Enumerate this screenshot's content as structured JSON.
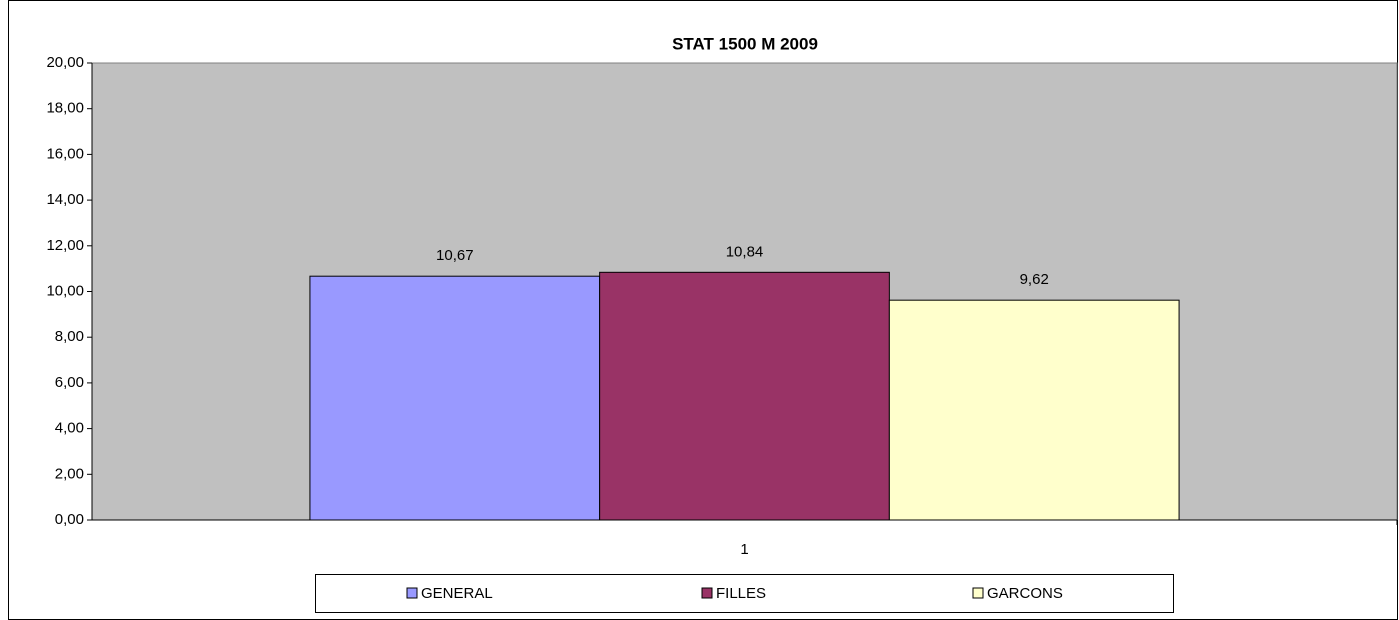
{
  "chart_data": {
    "type": "bar",
    "title": "STAT 1500 M 2009",
    "categories": [
      "1"
    ],
    "series": [
      {
        "name": "GENERAL",
        "color": "#9999ff",
        "values": [
          10.67
        ],
        "value_labels": [
          "10,67"
        ]
      },
      {
        "name": "FILLES",
        "color": "#993366",
        "values": [
          10.84
        ],
        "value_labels": [
          "10,84"
        ]
      },
      {
        "name": "GARCONS",
        "color": "#ffffcc",
        "values": [
          9.62
        ],
        "value_labels": [
          "9,62"
        ]
      }
    ],
    "ylim": [
      0,
      20
    ],
    "yticks": [
      {
        "value": 0,
        "label": "0,00"
      },
      {
        "value": 2,
        "label": "2,00"
      },
      {
        "value": 4,
        "label": "4,00"
      },
      {
        "value": 6,
        "label": "6,00"
      },
      {
        "value": 8,
        "label": "8,00"
      },
      {
        "value": 10,
        "label": "10,00"
      },
      {
        "value": 12,
        "label": "12,00"
      },
      {
        "value": 14,
        "label": "14,00"
      },
      {
        "value": 16,
        "label": "16,00"
      },
      {
        "value": 18,
        "label": "18,00"
      },
      {
        "value": 20,
        "label": "20,00"
      }
    ],
    "plot_background": "#c0c0c0",
    "legend": "bottom"
  }
}
